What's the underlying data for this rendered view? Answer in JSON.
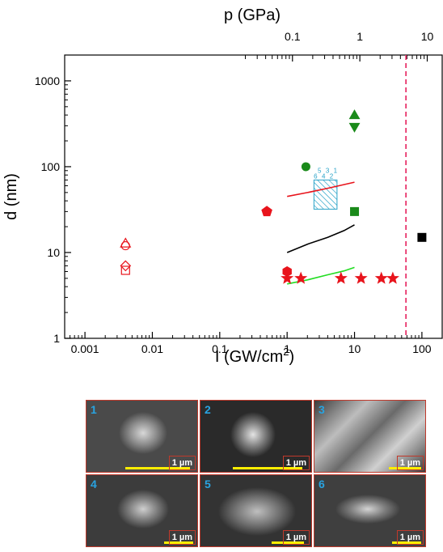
{
  "chart_data": {
    "type": "scatter",
    "top_axis": {
      "label": "p (GPa)",
      "scale": "log",
      "ticks": [
        "0.1",
        "1",
        "10"
      ]
    },
    "x_axis": {
      "label": "I (GW/cm",
      "label_sup": "2",
      "label_end": ")",
      "scale": "log",
      "range": [
        0.0005,
        200
      ],
      "ticks": [
        "0.001",
        "0.01",
        "0.1",
        "1",
        "10",
        "100"
      ]
    },
    "y_axis": {
      "label": "d (nm)",
      "scale": "log",
      "range": [
        1,
        2000
      ],
      "ticks": [
        "1",
        "10",
        "100",
        "1000"
      ]
    },
    "colors": {
      "red": "#e8141c",
      "green": "#1a8a1a",
      "black": "#000000",
      "hatch": "#29a3c8",
      "dash": "#e8336a",
      "light_green": "#22dd22"
    },
    "markers": [
      {
        "shape": "circle-open",
        "color": "red",
        "x": 0.004,
        "y": 12
      },
      {
        "shape": "triangle-up-open",
        "color": "red",
        "x": 0.004,
        "y": 12.8
      },
      {
        "shape": "square-open",
        "color": "red",
        "x": 0.004,
        "y": 6.2
      },
      {
        "shape": "diamond-open",
        "color": "red",
        "x": 0.004,
        "y": 7.0
      },
      {
        "shape": "pentagon",
        "color": "red",
        "x": 0.5,
        "y": 30
      },
      {
        "shape": "hexagon",
        "color": "red",
        "x": 1.0,
        "y": 6.0
      },
      {
        "shape": "star",
        "color": "red",
        "x": 1.0,
        "y": 5
      },
      {
        "shape": "star",
        "color": "red",
        "x": 1.6,
        "y": 5
      },
      {
        "shape": "star",
        "color": "red",
        "x": 6.3,
        "y": 5
      },
      {
        "shape": "star",
        "color": "red",
        "x": 12.5,
        "y": 5
      },
      {
        "shape": "star",
        "color": "red",
        "x": 25,
        "y": 5
      },
      {
        "shape": "star",
        "color": "red",
        "x": 37,
        "y": 5
      },
      {
        "shape": "circle",
        "color": "green",
        "x": 1.9,
        "y": 100
      },
      {
        "shape": "triangle-up",
        "color": "green",
        "x": 10,
        "y": 400
      },
      {
        "shape": "triangle-down",
        "color": "green",
        "x": 10,
        "y": 290
      },
      {
        "shape": "square",
        "color": "green",
        "x": 10,
        "y": 30
      },
      {
        "shape": "square",
        "color": "black",
        "x": 100,
        "y": 15
      }
    ],
    "curves": [
      {
        "color": "red",
        "x": [
          1,
          2,
          4,
          10
        ],
        "y": [
          45,
          50,
          56,
          66
        ]
      },
      {
        "color": "black",
        "x": [
          1,
          2,
          4,
          7,
          10
        ],
        "y": [
          10,
          12.5,
          15,
          18,
          21
        ]
      },
      {
        "color": "light_green",
        "x": [
          1,
          2,
          4,
          7,
          10
        ],
        "y": [
          4.3,
          4.8,
          5.5,
          6.1,
          6.7
        ]
      }
    ],
    "hatched_box": {
      "x": [
        2.5,
        5.5
      ],
      "y": [
        32,
        70
      ],
      "labels": [
        "6",
        "5",
        "4",
        "3",
        "2",
        "1"
      ]
    },
    "vline": {
      "x": 58,
      "style": "dashed",
      "color": "dash"
    }
  },
  "panels": [
    {
      "number": "1",
      "scale": "1 µm"
    },
    {
      "number": "2",
      "scale": "1 µm"
    },
    {
      "number": "3",
      "scale": "1 µm"
    },
    {
      "number": "4",
      "scale": "1 µm"
    },
    {
      "number": "5",
      "scale": "1 µm"
    },
    {
      "number": "6",
      "scale": "1 µm"
    }
  ]
}
